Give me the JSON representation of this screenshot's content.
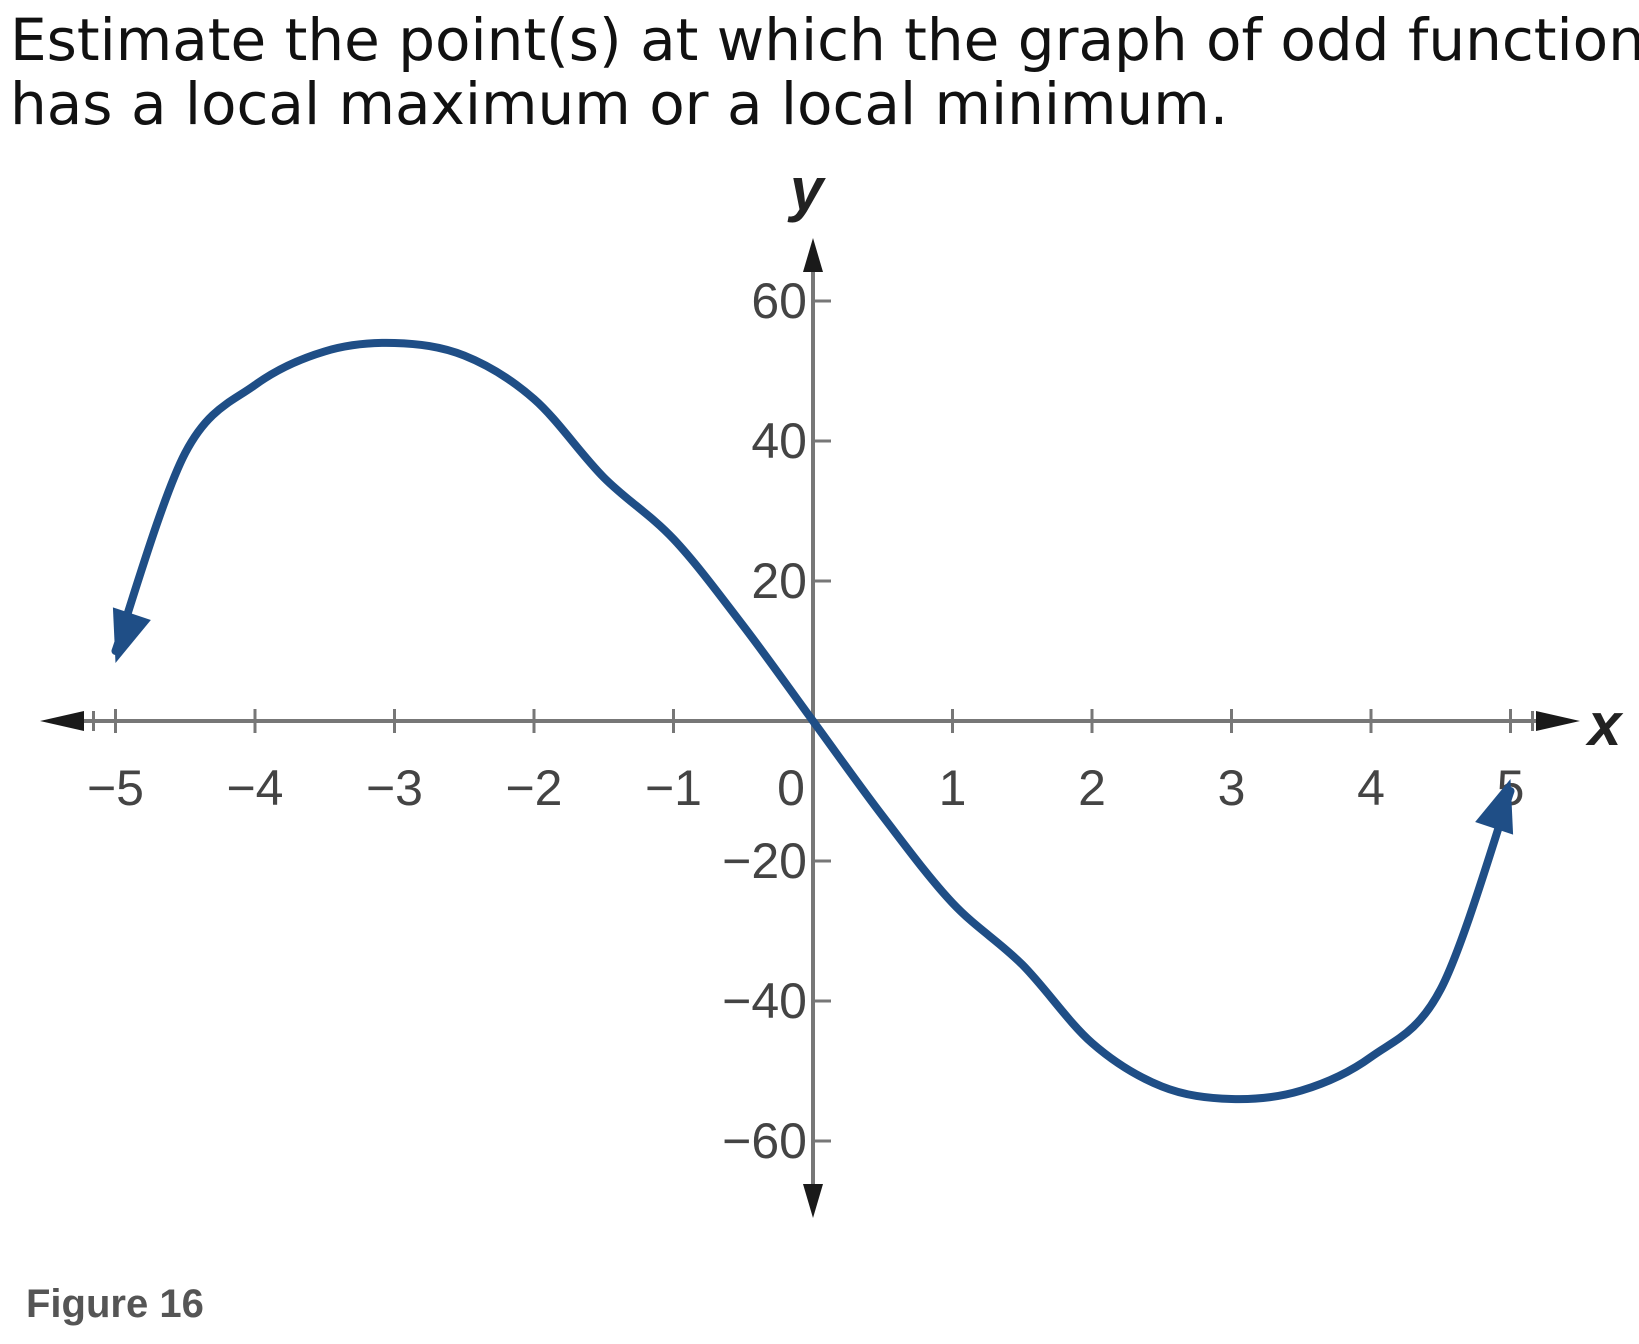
{
  "question": {
    "line1": "Estimate the point(s) at which the graph of odd function f",
    "line2": "has a local maximum or a local minimum."
  },
  "caption": "Figure 16",
  "colors": {
    "curve": "#1f4e86",
    "axis": "#777777",
    "arrow": "#1a1a1a",
    "text": "#444444"
  },
  "chart_data": {
    "type": "line",
    "xlabel": "x",
    "ylabel": "y",
    "xlim": [
      -5,
      5
    ],
    "ylim": [
      -60,
      60
    ],
    "x_ticks": [
      -5,
      -4,
      -3,
      -2,
      -1,
      0,
      1,
      2,
      3,
      4,
      5
    ],
    "x_tick_labels": [
      "−5",
      "−4",
      "−3",
      "−2",
      "−1",
      "0",
      "1",
      "2",
      "3",
      "4",
      "5"
    ],
    "y_ticks": [
      60,
      40,
      20,
      -20,
      -40,
      -60
    ],
    "y_tick_labels": [
      "60",
      "40",
      "20",
      "−20",
      "−40",
      "−60"
    ],
    "series": [
      {
        "x": [
          -5,
          -4.5,
          -4,
          -3.5,
          -3,
          -2.5,
          -2,
          -1.5,
          -1,
          -0.5,
          0,
          0.5,
          1,
          1.5,
          2,
          2.5,
          3,
          3.5,
          4,
          4.5,
          5
        ],
        "y": [
          10,
          38.3,
          48,
          52.8,
          54,
          52.2,
          46,
          34.8,
          26,
          13.6,
          0,
          -13.6,
          -26,
          -34.8,
          -46,
          -52.2,
          -54,
          -52.8,
          -48,
          -38.3,
          -10
        ],
        "arrows": "both"
      }
    ]
  }
}
